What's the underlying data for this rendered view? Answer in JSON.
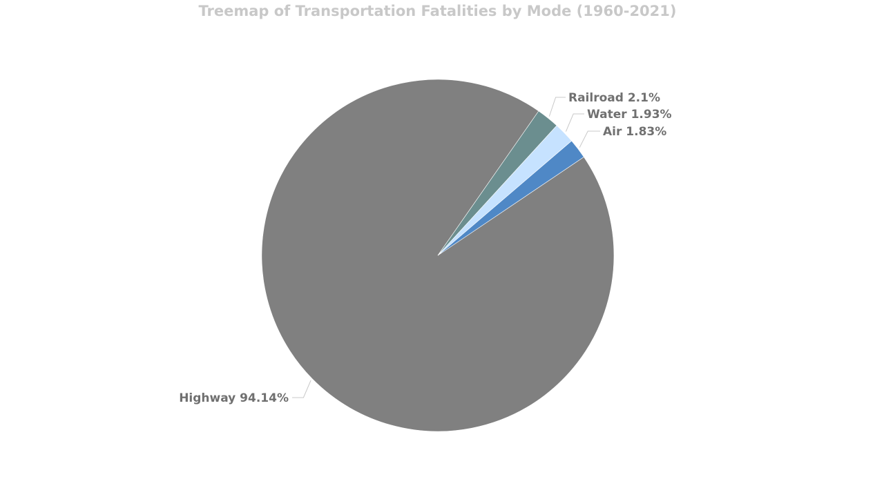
{
  "chart_data": {
    "type": "pie",
    "title": "Treemap of Transportation Fatalities by Mode (1960-2021)",
    "categories": [
      "Highway",
      "Railroad",
      "Water",
      "Air"
    ],
    "values": [
      94.14,
      2.1,
      1.93,
      1.83
    ],
    "labels": [
      "Highway 94.14%",
      "Railroad 2.1%",
      "Water 1.93%",
      "Air 1.83%"
    ],
    "colors": [
      "#808080",
      "#6b8e8f",
      "#c6e2ff",
      "#4f88c6"
    ],
    "label_color": "#707070",
    "title_color": "#c8c8c8"
  }
}
